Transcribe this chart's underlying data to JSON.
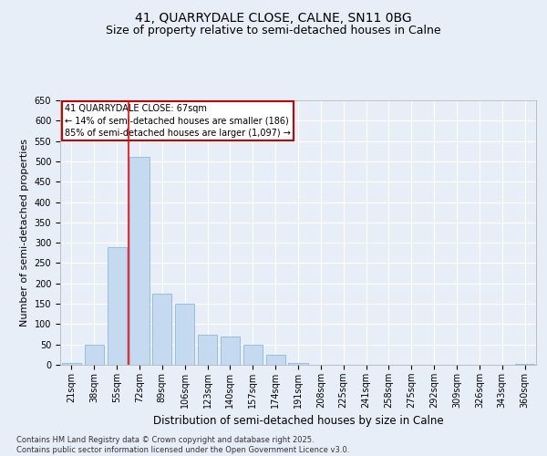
{
  "title_line1": "41, QUARRYDALE CLOSE, CALNE, SN11 0BG",
  "title_line2": "Size of property relative to semi-detached houses in Calne",
  "xlabel": "Distribution of semi-detached houses by size in Calne",
  "ylabel": "Number of semi-detached properties",
  "categories": [
    "21sqm",
    "38sqm",
    "55sqm",
    "72sqm",
    "89sqm",
    "106sqm",
    "123sqm",
    "140sqm",
    "157sqm",
    "174sqm",
    "191sqm",
    "208sqm",
    "225sqm",
    "241sqm",
    "258sqm",
    "275sqm",
    "292sqm",
    "309sqm",
    "326sqm",
    "343sqm",
    "360sqm"
  ],
  "values": [
    5,
    50,
    290,
    510,
    175,
    150,
    75,
    70,
    50,
    25,
    5,
    1,
    0,
    0,
    0,
    0,
    0,
    0,
    0,
    0,
    2
  ],
  "bar_color": "#c5d9f0",
  "bar_edge_color": "#7bafd4",
  "bar_width": 0.85,
  "red_line_x": 2.5,
  "annotation_title": "41 QUARRYDALE CLOSE: 67sqm",
  "annotation_line1": "← 14% of semi-detached houses are smaller (186)",
  "annotation_line2": "85% of semi-detached houses are larger (1,097) →",
  "annotation_box_facecolor": "#ffffff",
  "annotation_box_edgecolor": "#cc0000",
  "ylim": [
    0,
    650
  ],
  "yticks": [
    0,
    50,
    100,
    150,
    200,
    250,
    300,
    350,
    400,
    450,
    500,
    550,
    600,
    650
  ],
  "bg_color": "#e8eef8",
  "plot_bg_color": "#e8eef8",
  "grid_color": "#ffffff",
  "title_fontsize": 10,
  "subtitle_fontsize": 9,
  "tick_fontsize": 7,
  "ylabel_fontsize": 8,
  "xlabel_fontsize": 8.5,
  "annotation_fontsize": 7,
  "footer_fontsize": 6,
  "footer_line1": "Contains HM Land Registry data © Crown copyright and database right 2025.",
  "footer_line2": "Contains public sector information licensed under the Open Government Licence v3.0."
}
